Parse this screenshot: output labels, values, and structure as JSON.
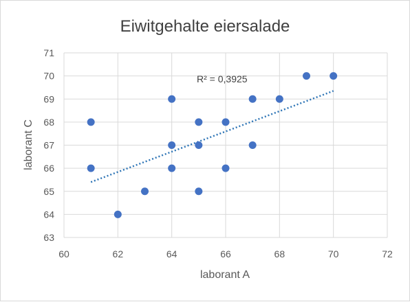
{
  "chart_data": {
    "type": "scatter",
    "title": "Eiwitgehalte eiersalade",
    "xlabel": "laborant A",
    "ylabel": "laborant C",
    "xlim": [
      60,
      72
    ],
    "ylim": [
      63,
      71
    ],
    "xticks": [
      "60",
      "62",
      "64",
      "66",
      "68",
      "70",
      "72"
    ],
    "yticks": [
      "63",
      "64",
      "65",
      "66",
      "67",
      "68",
      "69",
      "70",
      "71"
    ],
    "grid": true,
    "marker_color": "#4472c4",
    "trendline": {
      "type": "linear",
      "style": "dotted",
      "color": "#2e75b6",
      "x_start": 61,
      "y_start": 65.4,
      "x_end": 70,
      "y_end": 69.35
    },
    "annotation": "R² = 0,3925",
    "points": [
      {
        "x": 61,
        "y": 68
      },
      {
        "x": 61,
        "y": 66
      },
      {
        "x": 62,
        "y": 64
      },
      {
        "x": 63,
        "y": 65
      },
      {
        "x": 64,
        "y": 69
      },
      {
        "x": 64,
        "y": 67
      },
      {
        "x": 64,
        "y": 66
      },
      {
        "x": 65,
        "y": 68
      },
      {
        "x": 65,
        "y": 67
      },
      {
        "x": 65,
        "y": 65
      },
      {
        "x": 66,
        "y": 68
      },
      {
        "x": 66,
        "y": 66
      },
      {
        "x": 67,
        "y": 69
      },
      {
        "x": 67,
        "y": 67
      },
      {
        "x": 68,
        "y": 69
      },
      {
        "x": 69,
        "y": 70
      },
      {
        "x": 70,
        "y": 70
      }
    ]
  }
}
